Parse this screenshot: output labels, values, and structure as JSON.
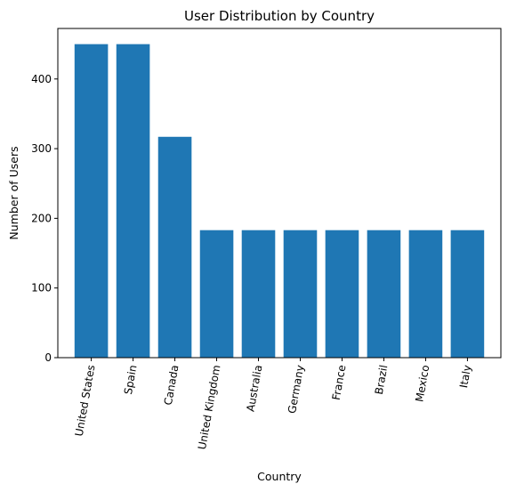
{
  "chart_data": {
    "type": "bar",
    "title": "User Distribution by Country",
    "xlabel": "Country",
    "ylabel": "Number of Users",
    "categories": [
      "United States",
      "Spain",
      "Canada",
      "United Kingdom",
      "Australia",
      "Germany",
      "France",
      "Brazil",
      "Mexico",
      "Italy"
    ],
    "values": [
      450,
      450,
      317,
      183,
      183,
      183,
      183,
      183,
      183,
      183
    ],
    "ylim": [
      0,
      472.5
    ],
    "yticks": [
      0,
      100,
      200,
      300,
      400
    ],
    "grid": false,
    "bar_color": "#1f77b4"
  }
}
